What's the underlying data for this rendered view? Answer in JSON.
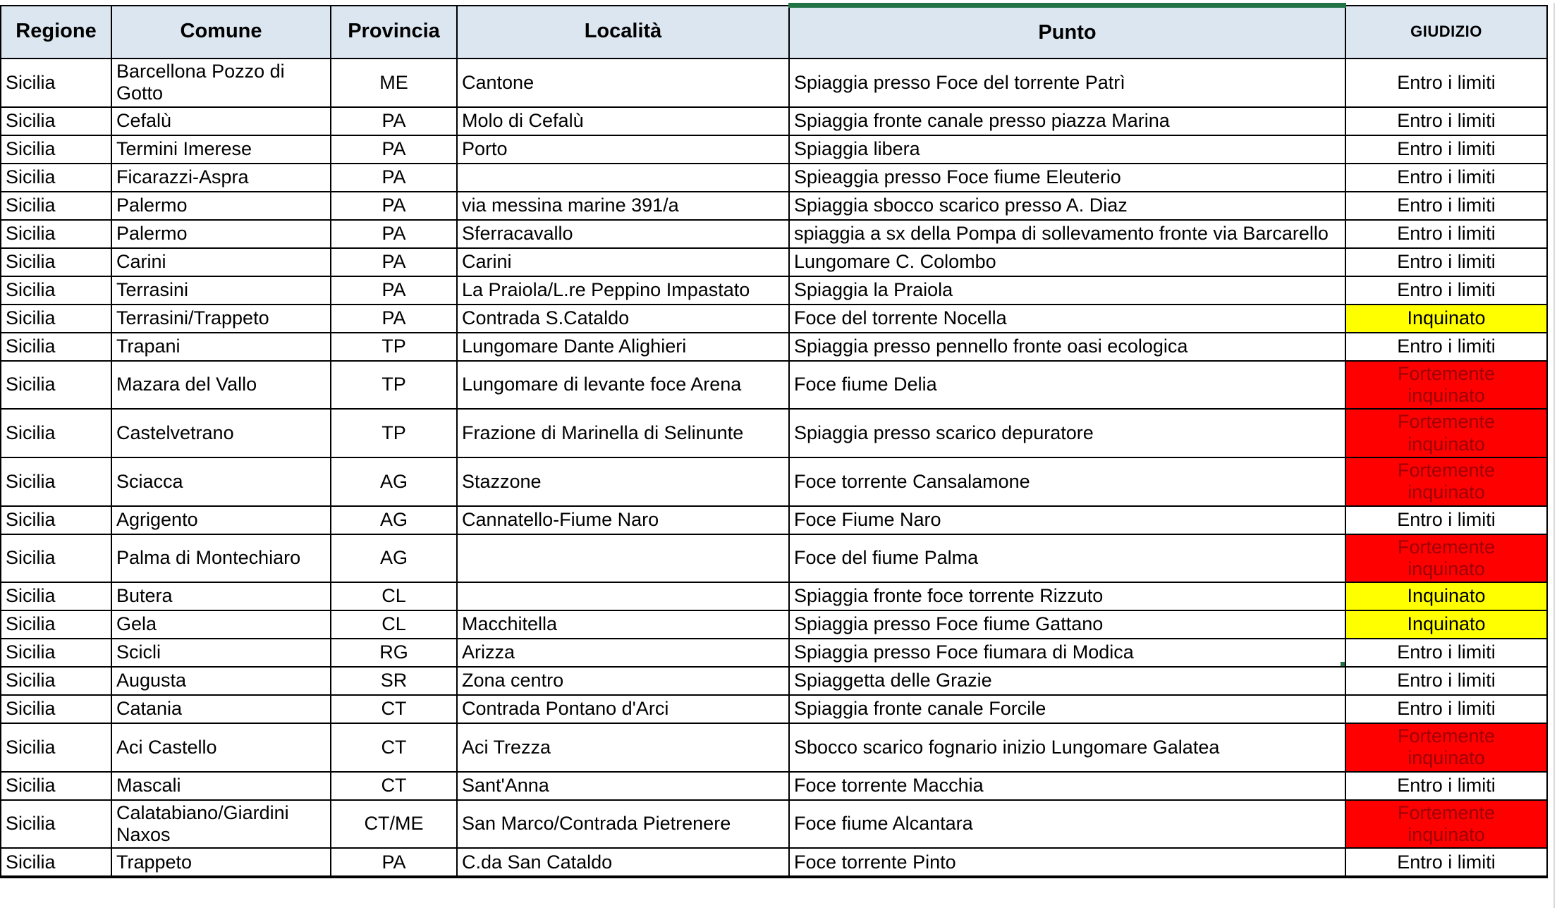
{
  "colors": {
    "header_bg": "#DCE6F1",
    "border": "#000000",
    "status_ok_bg": "#FFFFFF",
    "status_inquinato_bg": "#FFFF00",
    "status_fortemente_bg": "#FF0000",
    "status_fortemente_text": "#9C0006",
    "selection_green": "#217346"
  },
  "selection": {
    "row_index": 17,
    "column": "punto"
  },
  "table": {
    "headers": [
      {
        "key": "regione",
        "label": "Regione"
      },
      {
        "key": "comune",
        "label": "Comune"
      },
      {
        "key": "provincia",
        "label": "Provincia"
      },
      {
        "key": "localita",
        "label": "Località"
      },
      {
        "key": "punto",
        "label": "Punto"
      },
      {
        "key": "giudizio",
        "label": "GIUDIZIO"
      }
    ],
    "rows": [
      {
        "regione": "Sicilia",
        "comune": "Barcellona Pozzo di Gotto",
        "provincia": "ME",
        "localita": "Cantone",
        "punto": "Spiaggia presso Foce del torrente Patrì",
        "giudizio": "Entro i limiti",
        "status": "ok"
      },
      {
        "regione": "Sicilia",
        "comune": "Cefalù",
        "provincia": "PA",
        "localita": "Molo di Cefalù",
        "punto": "Spiaggia fronte canale presso piazza Marina",
        "giudizio": "Entro i limiti",
        "status": "ok"
      },
      {
        "regione": "Sicilia",
        "comune": "Termini Imerese",
        "provincia": "PA",
        "localita": "Porto",
        "punto": "Spiaggia libera",
        "giudizio": "Entro i limiti",
        "status": "ok"
      },
      {
        "regione": "Sicilia",
        "comune": "Ficarazzi-Aspra",
        "provincia": "PA",
        "localita": "",
        "punto": "Spieaggia presso Foce fiume Eleuterio",
        "giudizio": "Entro i limiti",
        "status": "ok"
      },
      {
        "regione": "Sicilia",
        "comune": "Palermo",
        "provincia": "PA",
        "localita": "via messina marine 391/a",
        "punto": "Spiaggia sbocco scarico presso A. Diaz",
        "giudizio": "Entro i limiti",
        "status": "ok"
      },
      {
        "regione": "Sicilia",
        "comune": "Palermo",
        "provincia": "PA",
        "localita": "Sferracavallo",
        "punto": "spiaggia a sx della Pompa di sollevamento fronte via Barcarello",
        "giudizio": "Entro i limiti",
        "status": "ok"
      },
      {
        "regione": "Sicilia",
        "comune": "Carini",
        "provincia": "PA",
        "localita": "Carini",
        "punto": "Lungomare C. Colombo",
        "giudizio": "Entro i limiti",
        "status": "ok"
      },
      {
        "regione": "Sicilia",
        "comune": "Terrasini",
        "provincia": "PA",
        "localita": "La Praiola/L.re Peppino Impastato",
        "punto": "Spiaggia la Praiola",
        "giudizio": "Entro i limiti",
        "status": "ok"
      },
      {
        "regione": "Sicilia",
        "comune": "Terrasini/Trappeto",
        "provincia": "PA",
        "localita": "Contrada S.Cataldo",
        "punto": "Foce del torrente Nocella",
        "giudizio": "Inquinato",
        "status": "inquinato"
      },
      {
        "regione": "Sicilia",
        "comune": "Trapani",
        "provincia": "TP",
        "localita": "Lungomare Dante Alighieri",
        "punto": "Spiaggia presso pennello fronte oasi ecologica",
        "giudizio": "Entro i limiti",
        "status": "ok"
      },
      {
        "regione": "Sicilia",
        "comune": "Mazara del Vallo",
        "provincia": "TP",
        "localita": "Lungomare di levante foce Arena",
        "punto": "Foce fiume Delia",
        "giudizio": "Fortemente inquinato",
        "status": "fortemente"
      },
      {
        "regione": "Sicilia",
        "comune": "Castelvetrano",
        "provincia": "TP",
        "localita": "Frazione di Marinella di Selinunte",
        "punto": "Spiaggia presso scarico depuratore",
        "giudizio": "Fortemente inquinato",
        "status": "fortemente"
      },
      {
        "regione": "Sicilia",
        "comune": "Sciacca",
        "provincia": "AG",
        "localita": "Stazzone",
        "punto": "Foce torrente Cansalamone",
        "giudizio": "Fortemente inquinato",
        "status": "fortemente"
      },
      {
        "regione": "Sicilia",
        "comune": "Agrigento",
        "provincia": "AG",
        "localita": "Cannatello-Fiume Naro",
        "punto": "Foce Fiume Naro",
        "giudizio": "Entro i limiti",
        "status": "ok"
      },
      {
        "regione": "Sicilia",
        "comune": "Palma di Montechiaro",
        "provincia": "AG",
        "localita": "",
        "punto": "Foce del fiume Palma",
        "giudizio": "Fortemente inquinato",
        "status": "fortemente"
      },
      {
        "regione": "Sicilia",
        "comune": "Butera",
        "provincia": "CL",
        "localita": "",
        "punto": "Spiaggia fronte foce torrente Rizzuto",
        "giudizio": "Inquinato",
        "status": "inquinato"
      },
      {
        "regione": "Sicilia",
        "comune": "Gela",
        "provincia": "CL",
        "localita": "Macchitella",
        "punto": "Spiaggia presso Foce fiume Gattano",
        "giudizio": "Inquinato",
        "status": "inquinato"
      },
      {
        "regione": "Sicilia",
        "comune": "Scicli",
        "provincia": "RG",
        "localita": "Arizza",
        "punto": "Spiaggia presso Foce fiumara di Modica",
        "giudizio": "Entro i limiti",
        "status": "ok"
      },
      {
        "regione": "Sicilia",
        "comune": "Augusta",
        "provincia": "SR",
        "localita": "Zona centro",
        "punto": "Spiaggetta delle Grazie",
        "giudizio": "Entro i limiti",
        "status": "ok"
      },
      {
        "regione": "Sicilia",
        "comune": "Catania",
        "provincia": "CT",
        "localita": "Contrada Pontano d'Arci",
        "punto": "Spiaggia fronte canale Forcile",
        "giudizio": "Entro i limiti",
        "status": "ok"
      },
      {
        "regione": "Sicilia",
        "comune": "Aci Castello",
        "provincia": "CT",
        "localita": "Aci Trezza",
        "punto": "Sbocco scarico fognario inizio Lungomare Galatea",
        "giudizio": "Fortemente inquinato",
        "status": "fortemente"
      },
      {
        "regione": "Sicilia",
        "comune": "Mascali",
        "provincia": "CT",
        "localita": "Sant'Anna",
        "punto": "Foce torrente Macchia",
        "giudizio": "Entro i limiti",
        "status": "ok"
      },
      {
        "regione": "Sicilia",
        "comune": "Calatabiano/Giardini Naxos",
        "provincia": "CT/ME",
        "localita": "San Marco/Contrada Pietrenere",
        "punto": "Foce fiume Alcantara",
        "giudizio": "Fortemente inquinato",
        "status": "fortemente"
      },
      {
        "regione": "Sicilia",
        "comune": "Trappeto",
        "provincia": "PA",
        "localita": "C.da San Cataldo",
        "punto": "Foce torrente Pinto",
        "giudizio": "Entro i limiti",
        "status": "ok"
      }
    ]
  }
}
